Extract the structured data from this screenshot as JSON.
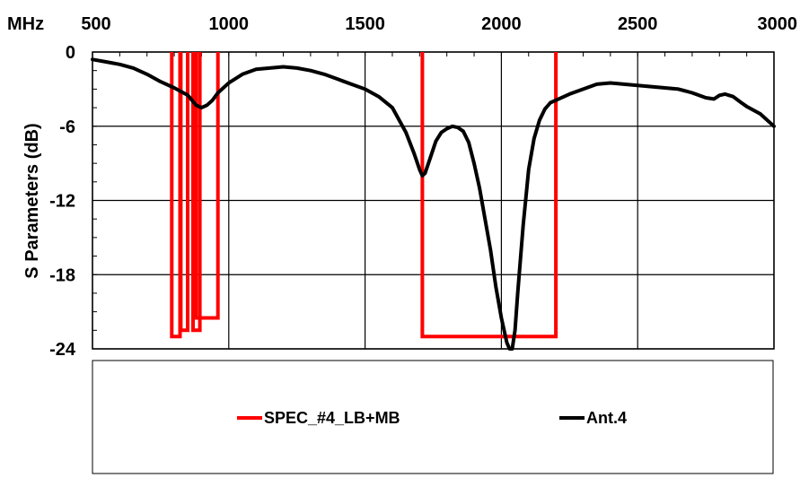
{
  "chart_data": {
    "type": "line",
    "title": "",
    "xlabel": "MHz",
    "ylabel": "S Parameters (dB)",
    "xlim": [
      500,
      3000
    ],
    "ylim": [
      -24,
      0
    ],
    "x_ticks": [
      500,
      1000,
      1500,
      2000,
      2500,
      3000
    ],
    "x_tick_labels": [
      "500",
      "1000",
      "1500",
      "2000",
      "2500",
      "3000"
    ],
    "y_ticks": [
      0,
      -6,
      -12,
      -18,
      -24
    ],
    "y_tick_labels": [
      "0",
      "-6",
      "-12",
      "-18",
      "-24"
    ],
    "x_axis_position": "top",
    "grid": true,
    "legend_position": "bottom",
    "series": [
      {
        "name": "SPEC_#4_LB+MB",
        "color": "#ff0000",
        "segments": [
          {
            "x": [
              791,
              791,
              821,
              821
            ],
            "y": [
              0,
              -23,
              -23,
              0
            ]
          },
          {
            "x": [
              824,
              824,
              849,
              849
            ],
            "y": [
              0,
              -22.5,
              -22.5,
              0
            ]
          },
          {
            "x": [
              869,
              869,
              894,
              894
            ],
            "y": [
              0,
              -22.5,
              -22.5,
              0
            ]
          },
          {
            "x": [
              880,
              880,
              960,
              960
            ],
            "y": [
              0,
              -21.5,
              -21.5,
              0
            ]
          },
          {
            "x": [
              1710,
              1710,
              2200,
              2200
            ],
            "y": [
              0,
              -23,
              -23,
              0
            ]
          }
        ]
      },
      {
        "name": "Ant.4",
        "color": "#000000",
        "x": [
          500,
          550,
          600,
          650,
          700,
          750,
          800,
          850,
          880,
          900,
          920,
          940,
          960,
          1000,
          1050,
          1100,
          1150,
          1200,
          1250,
          1300,
          1350,
          1400,
          1450,
          1500,
          1550,
          1600,
          1650,
          1680,
          1700,
          1710,
          1720,
          1740,
          1760,
          1780,
          1800,
          1820,
          1840,
          1860,
          1880,
          1900,
          1920,
          1940,
          1960,
          1980,
          2000,
          2020,
          2030,
          2040,
          2050,
          2060,
          2080,
          2100,
          2120,
          2140,
          2160,
          2180,
          2200,
          2250,
          2300,
          2350,
          2400,
          2450,
          2500,
          2550,
          2600,
          2650,
          2700,
          2750,
          2780,
          2800,
          2820,
          2850,
          2880,
          2900,
          2950,
          3000
        ],
        "y": [
          -0.6,
          -0.8,
          -1.0,
          -1.3,
          -1.8,
          -2.4,
          -2.9,
          -3.5,
          -4.3,
          -4.5,
          -4.3,
          -3.9,
          -3.3,
          -2.5,
          -1.8,
          -1.4,
          -1.3,
          -1.2,
          -1.3,
          -1.5,
          -1.8,
          -2.2,
          -2.6,
          -3.0,
          -3.6,
          -4.5,
          -6.5,
          -8.2,
          -9.5,
          -10.0,
          -9.8,
          -8.5,
          -7.2,
          -6.5,
          -6.2,
          -6.0,
          -6.1,
          -6.4,
          -7.3,
          -9.0,
          -11.0,
          -13.5,
          -16.0,
          -19.0,
          -21.5,
          -23.5,
          -24.0,
          -24.0,
          -22.5,
          -19.5,
          -14.0,
          -9.5,
          -7.0,
          -5.5,
          -4.6,
          -4.1,
          -3.9,
          -3.4,
          -3.0,
          -2.6,
          -2.5,
          -2.6,
          -2.7,
          -2.8,
          -2.9,
          -3.0,
          -3.3,
          -3.7,
          -3.8,
          -3.5,
          -3.4,
          -3.6,
          -4.1,
          -4.4,
          -5.0,
          -6.0
        ]
      }
    ]
  }
}
